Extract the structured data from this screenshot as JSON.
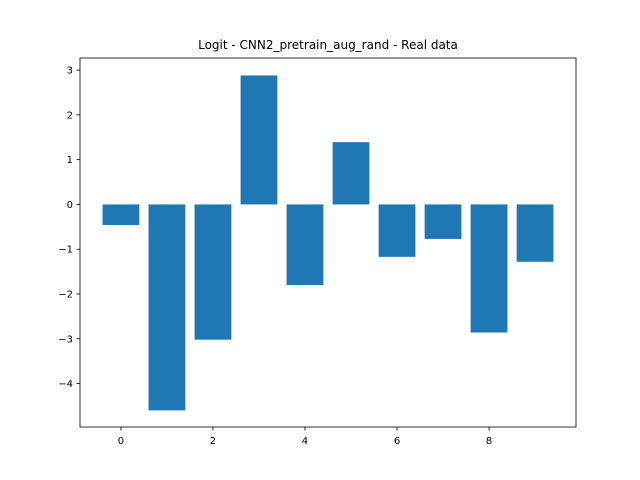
{
  "chart_data": {
    "type": "bar",
    "title": "Logit - CNN2_pretrain_aug_rand - Real data",
    "xlabel": "",
    "ylabel": "",
    "categories": [
      0,
      1,
      2,
      3,
      4,
      5,
      6,
      7,
      8,
      9
    ],
    "values": [
      -0.46,
      -4.6,
      -3.02,
      2.88,
      -1.8,
      1.39,
      -1.17,
      -0.77,
      -2.86,
      -1.28
    ],
    "xlim": [
      -0.89,
      9.89
    ],
    "ylim": [
      -4.97,
      3.27
    ],
    "xticks": [
      0,
      2,
      4,
      6,
      8
    ],
    "xtick_labels": [
      "0",
      "2",
      "4",
      "6",
      "8"
    ],
    "yticks": [
      -4,
      -3,
      -2,
      -1,
      0,
      1,
      2,
      3
    ],
    "ytick_labels": [
      "−4",
      "−3",
      "−2",
      "−1",
      "0",
      "1",
      "2",
      "3"
    ],
    "bar_color": "#1f77b4",
    "grid": false,
    "legend": false
  }
}
